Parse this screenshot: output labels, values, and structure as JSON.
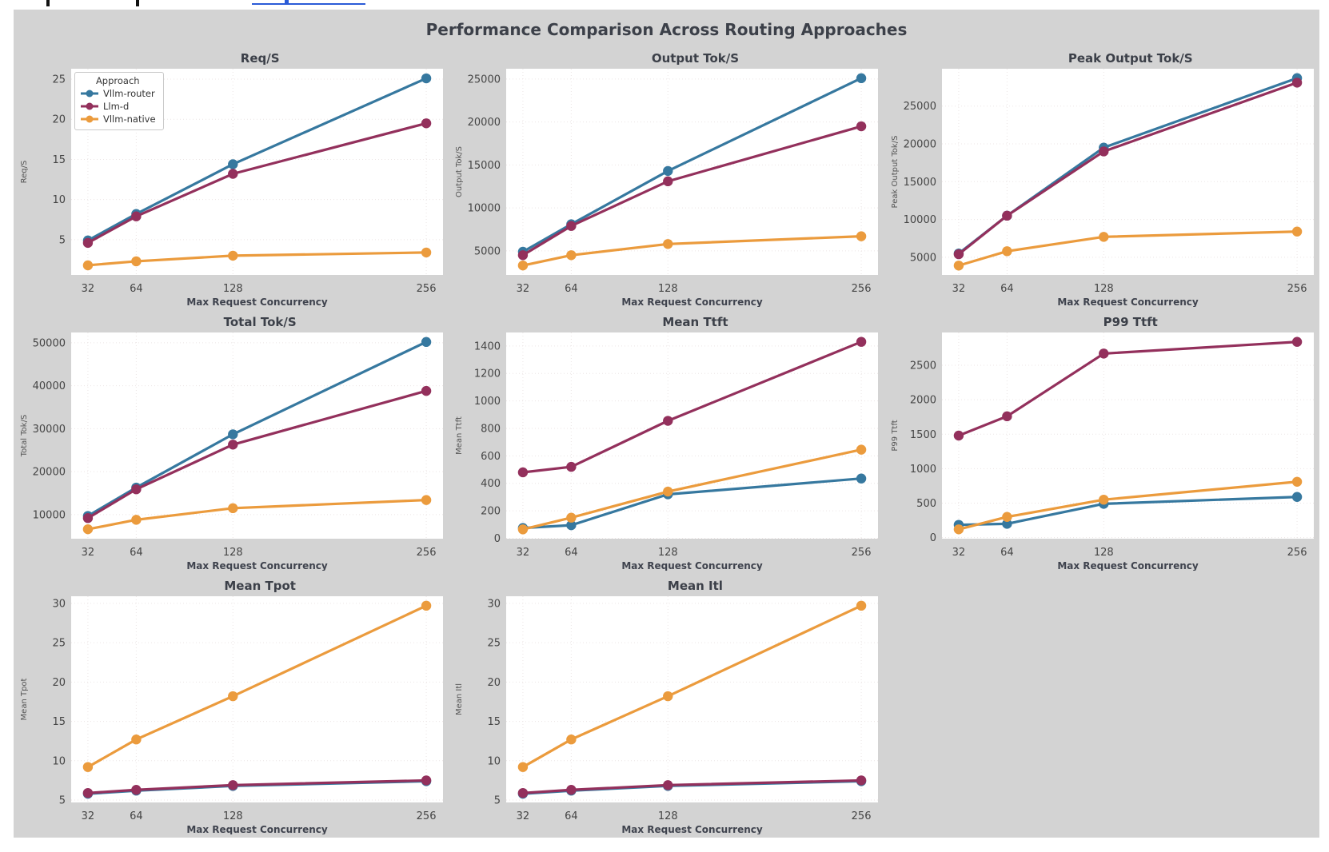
{
  "figure": {
    "title": "Performance Comparison Across Routing Approaches",
    "xlabel": "Max Request Concurrency",
    "x_ticks": [
      32,
      64,
      128,
      256
    ],
    "legend": {
      "title": "Approach",
      "items": [
        {
          "label": "Vllm-router",
          "color": "#36789f"
        },
        {
          "label": "Llm-d",
          "color": "#93305c"
        },
        {
          "label": "Vllm-native",
          "color": "#eb9b3d"
        }
      ]
    },
    "colors": {
      "panel_background": "#d3d3d3",
      "plot_background": "#ffffff",
      "grid": "#ece5e5",
      "title_text": "#3c4049",
      "tick_text": "#454545",
      "clipped_link": "#2a5bd7"
    }
  },
  "chart_data": [
    {
      "type": "line",
      "title": "Req/S",
      "ylabel": "Req/S",
      "xlabel": "Max Request Concurrency",
      "x": [
        32,
        64,
        128,
        256
      ],
      "y_ticks": [
        5,
        10,
        15,
        20,
        25
      ],
      "ylim": [
        0.6,
        26.3
      ],
      "grid": true,
      "legend": true,
      "series": [
        {
          "name": "Vllm-router",
          "color": "#36789f",
          "values": [
            4.9,
            8.2,
            14.4,
            25.1
          ]
        },
        {
          "name": "Llm-d",
          "color": "#93305c",
          "values": [
            4.6,
            7.9,
            13.2,
            19.5
          ]
        },
        {
          "name": "Vllm-native",
          "color": "#eb9b3d",
          "values": [
            1.8,
            2.3,
            3.0,
            3.4
          ]
        }
      ]
    },
    {
      "type": "line",
      "title": "Output Tok/S",
      "ylabel": "Output Tok/S",
      "xlabel": "Max Request Concurrency",
      "x": [
        32,
        64,
        128,
        256
      ],
      "y_ticks": [
        5000,
        10000,
        15000,
        20000,
        25000
      ],
      "ylim": [
        2200,
        26200
      ],
      "grid": true,
      "legend": false,
      "series": [
        {
          "name": "Vllm-router",
          "color": "#36789f",
          "values": [
            4900,
            8100,
            14300,
            25100
          ]
        },
        {
          "name": "Llm-d",
          "color": "#93305c",
          "values": [
            4500,
            7900,
            13100,
            19500
          ]
        },
        {
          "name": "Vllm-native",
          "color": "#eb9b3d",
          "values": [
            3300,
            4500,
            5800,
            6700
          ]
        }
      ]
    },
    {
      "type": "line",
      "title": "Peak Output Tok/S",
      "ylabel": "Peak Output Tok/S",
      "xlabel": "Max Request Concurrency",
      "x": [
        32,
        64,
        128,
        256
      ],
      "y_ticks": [
        5000,
        10000,
        15000,
        20000,
        25000
      ],
      "ylim": [
        2660,
        29940
      ],
      "grid": true,
      "legend": false,
      "series": [
        {
          "name": "Vllm-router",
          "color": "#36789f",
          "values": [
            5500,
            10500,
            19500,
            28700
          ]
        },
        {
          "name": "Llm-d",
          "color": "#93305c",
          "values": [
            5400,
            10500,
            19000,
            28100
          ]
        },
        {
          "name": "Vllm-native",
          "color": "#eb9b3d",
          "values": [
            3900,
            5800,
            7700,
            8400
          ]
        }
      ]
    },
    {
      "type": "line",
      "title": "Total Tok/S",
      "ylabel": "Total Tok/S",
      "xlabel": "Max Request Concurrency",
      "x": [
        32,
        64,
        128,
        256
      ],
      "y_ticks": [
        10000,
        20000,
        30000,
        40000,
        50000
      ],
      "ylim": [
        4400,
        52400
      ],
      "grid": true,
      "legend": false,
      "series": [
        {
          "name": "Vllm-router",
          "color": "#36789f",
          "values": [
            9700,
            16300,
            28700,
            50200
          ]
        },
        {
          "name": "Llm-d",
          "color": "#93305c",
          "values": [
            9200,
            15900,
            26300,
            38800
          ]
        },
        {
          "name": "Vllm-native",
          "color": "#eb9b3d",
          "values": [
            6600,
            8800,
            11500,
            13400
          ]
        }
      ]
    },
    {
      "type": "line",
      "title": "Mean Ttft",
      "ylabel": "Mean Ttft",
      "xlabel": "Max Request Concurrency",
      "x": [
        32,
        64,
        128,
        256
      ],
      "y_ticks": [
        0,
        200,
        400,
        600,
        800,
        1000,
        1200,
        1400
      ],
      "ylim": [
        -3,
        1498
      ],
      "grid": true,
      "legend": false,
      "series": [
        {
          "name": "Vllm-router",
          "color": "#36789f",
          "values": [
            75,
            95,
            320,
            435
          ]
        },
        {
          "name": "Llm-d",
          "color": "#93305c",
          "values": [
            480,
            520,
            855,
            1430
          ]
        },
        {
          "name": "Vllm-native",
          "color": "#eb9b3d",
          "values": [
            65,
            150,
            340,
            645
          ]
        }
      ]
    },
    {
      "type": "line",
      "title": "P99 Ttft",
      "ylabel": "P99 Ttft",
      "xlabel": "Max Request Concurrency",
      "x": [
        32,
        64,
        128,
        256
      ],
      "y_ticks": [
        0,
        500,
        1000,
        1500,
        2000,
        2500
      ],
      "ylim": [
        -16,
        2976
      ],
      "grid": true,
      "legend": false,
      "series": [
        {
          "name": "Vllm-router",
          "color": "#36789f",
          "values": [
            185,
            200,
            490,
            590
          ]
        },
        {
          "name": "Llm-d",
          "color": "#93305c",
          "values": [
            1480,
            1760,
            2670,
            2840
          ]
        },
        {
          "name": "Vllm-native",
          "color": "#eb9b3d",
          "values": [
            120,
            300,
            550,
            810
          ]
        }
      ]
    },
    {
      "type": "line",
      "title": "Mean Tpot",
      "ylabel": "Mean Tpot",
      "xlabel": "Max Request Concurrency",
      "x": [
        32,
        64,
        128,
        256
      ],
      "y_ticks": [
        5,
        10,
        15,
        20,
        25,
        30
      ],
      "ylim": [
        4.7,
        30.9
      ],
      "grid": true,
      "legend": false,
      "series": [
        {
          "name": "Vllm-router",
          "color": "#36789f",
          "values": [
            5.8,
            6.2,
            6.8,
            7.4
          ]
        },
        {
          "name": "Llm-d",
          "color": "#93305c",
          "values": [
            5.9,
            6.3,
            6.9,
            7.5
          ]
        },
        {
          "name": "Vllm-native",
          "color": "#eb9b3d",
          "values": [
            9.2,
            12.7,
            18.2,
            29.7
          ]
        }
      ]
    },
    {
      "type": "line",
      "title": "Mean Itl",
      "ylabel": "Mean Itl",
      "xlabel": "Max Request Concurrency",
      "x": [
        32,
        64,
        128,
        256
      ],
      "y_ticks": [
        5,
        10,
        15,
        20,
        25,
        30
      ],
      "ylim": [
        4.7,
        30.9
      ],
      "grid": true,
      "legend": false,
      "series": [
        {
          "name": "Vllm-router",
          "color": "#36789f",
          "values": [
            5.8,
            6.2,
            6.8,
            7.4
          ]
        },
        {
          "name": "Llm-d",
          "color": "#93305c",
          "values": [
            5.9,
            6.3,
            6.9,
            7.5
          ]
        },
        {
          "name": "Vllm-native",
          "color": "#eb9b3d",
          "values": [
            9.2,
            12.7,
            18.2,
            29.7
          ]
        }
      ]
    }
  ]
}
